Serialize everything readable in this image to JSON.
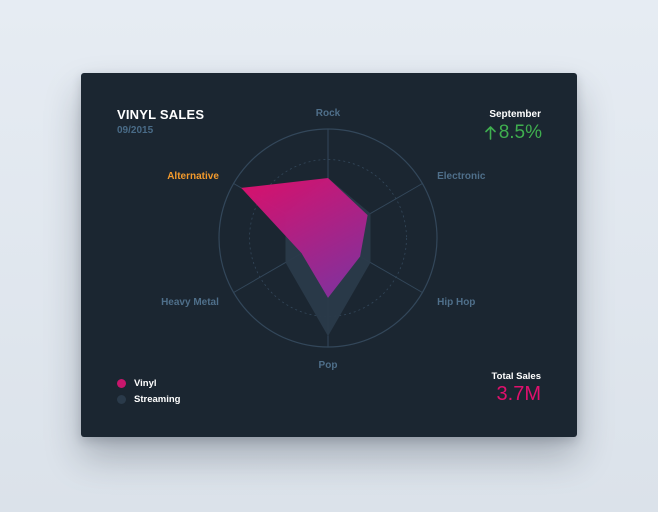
{
  "header": {
    "title": "VINYL SALES",
    "date": "09/2015"
  },
  "stats": {
    "month_label": "September",
    "change": "8.5%",
    "change_icon": "arrow-up-icon",
    "total_label": "Total Sales",
    "total_value": "3.7M"
  },
  "colors": {
    "vinyl": "#d0106e",
    "vinyl_gradient_end": "#8a2f9a",
    "streaming": "#2a3a4a",
    "positive": "#3fae4f",
    "accent_label": "#f39a2c",
    "axis_label": "#4f6f8a",
    "grid": "#33475a"
  },
  "legend": [
    {
      "label": "Vinyl",
      "color": "#c8166c"
    },
    {
      "label": "Streaming",
      "color": "#2a3a4a"
    }
  ],
  "chart_data": {
    "type": "radar",
    "axes": [
      "Rock",
      "Electronic",
      "Hip Hop",
      "Pop",
      "Heavy Metal",
      "Alternative"
    ],
    "highlighted_axis": "Alternative",
    "max": 1,
    "series": [
      {
        "name": "Streaming",
        "values": [
          0.55,
          0.45,
          0.45,
          0.9,
          0.45,
          0.45
        ]
      },
      {
        "name": "Vinyl",
        "values": [
          0.55,
          0.42,
          0.34,
          0.55,
          0.28,
          0.92
        ]
      }
    ]
  }
}
